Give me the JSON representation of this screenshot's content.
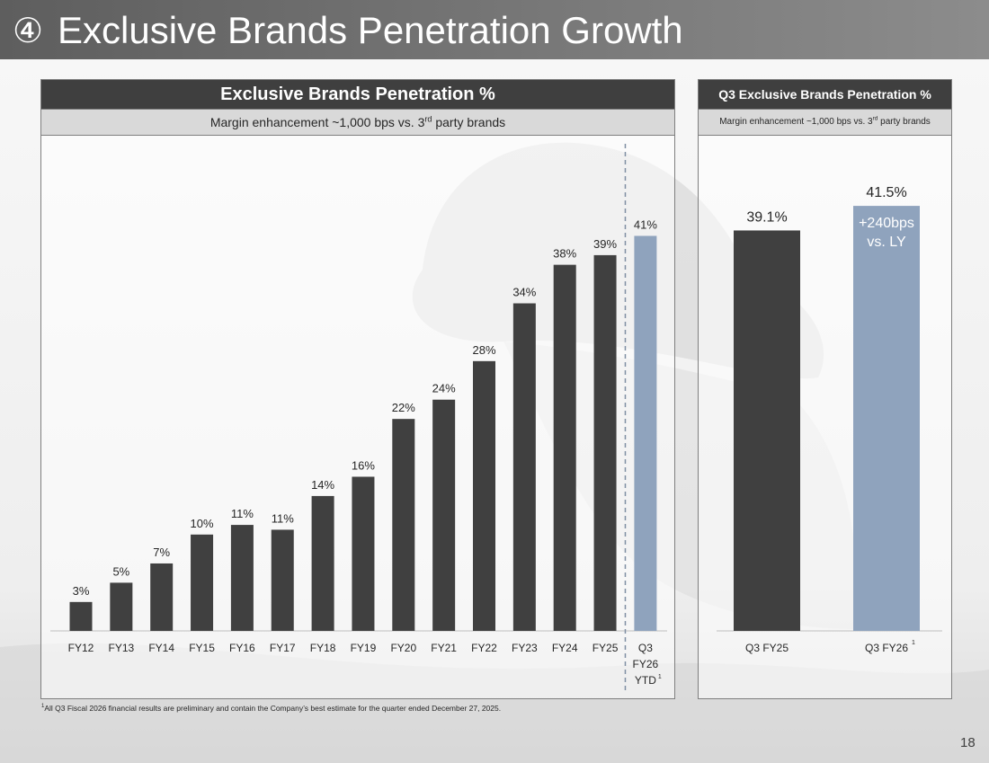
{
  "header": {
    "badge": "④",
    "title": "Exclusive Brands Penetration Growth"
  },
  "left_panel": {
    "title": "Exclusive Brands Penetration %",
    "subtitle_pre": "Margin enhancement ~1,000 bps vs. 3",
    "subtitle_sup": "rd",
    "subtitle_post": " party brands"
  },
  "right_panel": {
    "title": "Q3 Exclusive Brands Penetration %",
    "subtitle_pre": "Margin enhancement ~1,000 bps vs. 3",
    "subtitle_sup": "rd",
    "subtitle_post": " party brands"
  },
  "chart_data": [
    {
      "type": "bar",
      "title": "Exclusive Brands Penetration %",
      "categories": [
        "FY12",
        "FY13",
        "FY14",
        "FY15",
        "FY16",
        "FY17",
        "FY18",
        "FY19",
        "FY20",
        "FY21",
        "FY22",
        "FY23",
        "FY24",
        "FY25",
        "Q3 FY26 YTD"
      ],
      "category_label_lines": [
        [
          "FY12"
        ],
        [
          "FY13"
        ],
        [
          "FY14"
        ],
        [
          "FY15"
        ],
        [
          "FY16"
        ],
        [
          "FY17"
        ],
        [
          "FY18"
        ],
        [
          "FY19"
        ],
        [
          "FY20"
        ],
        [
          "FY21"
        ],
        [
          "FY22"
        ],
        [
          "FY23"
        ],
        [
          "FY24"
        ],
        [
          "FY25"
        ],
        [
          "Q3",
          "FY26",
          "YTD"
        ]
      ],
      "category_footnote": [
        "",
        "",
        "",
        "",
        "",
        "",
        "",
        "",
        "",
        "",
        "",
        "",
        "",
        "",
        "1"
      ],
      "values": [
        3.0,
        5.0,
        7.0,
        10.0,
        11.0,
        10.5,
        14.0,
        16.0,
        22.0,
        24.0,
        28.0,
        34.0,
        38.0,
        39.0,
        41.0
      ],
      "labels": [
        "3%",
        "5%",
        "7%",
        "10%",
        "11%",
        "11%",
        "14%",
        "16%",
        "22%",
        "24%",
        "28%",
        "34%",
        "38%",
        "39%",
        "41%"
      ],
      "highlight_index": 14,
      "divider_before_index": 14,
      "ylim": [
        0,
        45
      ],
      "xlabel": "",
      "ylabel": "",
      "grid": false
    },
    {
      "type": "bar",
      "title": "Q3 Exclusive Brands Penetration %",
      "categories": [
        "Q3 FY25",
        "Q3 FY26"
      ],
      "category_footnote": [
        "",
        "1"
      ],
      "values": [
        39.1,
        41.5
      ],
      "labels": [
        "39.1%",
        "41.5%"
      ],
      "highlight_index": 1,
      "annotation_lines": [
        "+240bps",
        "vs. LY"
      ],
      "ylim": [
        0,
        45
      ],
      "xlabel": "",
      "ylabel": "",
      "grid": false
    }
  ],
  "colors": {
    "bar": "#404040",
    "highlight": "#8fa3bd",
    "divider": "#7f8fa3",
    "axis": "#bfbfbf",
    "text": "#262626"
  },
  "footnote": {
    "marker": "1",
    "text": "All Q3 Fiscal 2026 financial results are preliminary and contain the Company’s best estimate for the quarter ended December 27, 2025."
  },
  "page_number": "18"
}
